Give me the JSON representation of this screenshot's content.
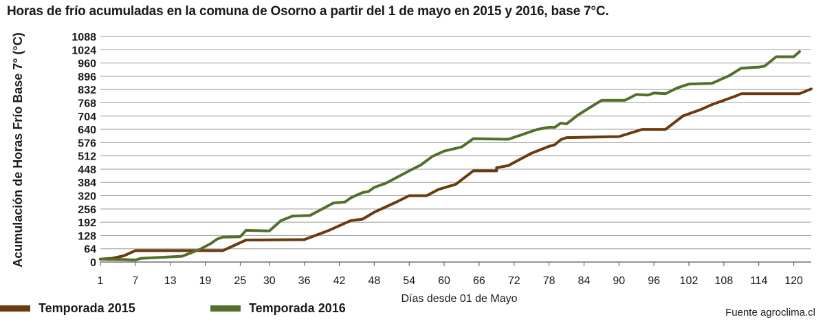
{
  "chart_data": {
    "type": "line",
    "title": "Horas de frío acumuladas en la comuna de Osorno a partir del 1 de mayo en 2015 y 2016, base 7°C.",
    "xlabel": "Días desde 01 de Mayo",
    "ylabel": "Acumulación de Horas Frío Base 7° (°C)",
    "xlim": [
      1,
      123
    ],
    "ylim": [
      0,
      1088
    ],
    "x_ticks": [
      1,
      7,
      13,
      19,
      25,
      30,
      36,
      42,
      48,
      54,
      60,
      66,
      72,
      78,
      84,
      90,
      96,
      102,
      108,
      114,
      120
    ],
    "y_ticks": [
      0,
      64,
      128,
      192,
      256,
      320,
      384,
      448,
      512,
      576,
      640,
      704,
      768,
      832,
      896,
      960,
      1024,
      1088
    ],
    "y_tick_labels": [
      "0",
      "64",
      "128",
      "192",
      "256",
      "320",
      "384",
      "448",
      "512",
      "576",
      "640",
      "704",
      "768",
      "832",
      "896",
      "960",
      "1024",
      "1088"
    ],
    "grid": "horizontal",
    "legend": "bottom-left",
    "source": "Fuente agroclima.cl",
    "series": [
      {
        "name": "Temporada 2015",
        "color": "#6b3a0e",
        "points": [
          [
            1,
            14
          ],
          [
            3,
            18
          ],
          [
            5,
            30
          ],
          [
            7,
            55
          ],
          [
            13,
            55
          ],
          [
            18,
            55
          ],
          [
            22,
            55
          ],
          [
            26,
            106
          ],
          [
            36,
            108
          ],
          [
            40,
            150
          ],
          [
            44,
            200
          ],
          [
            46,
            207
          ],
          [
            48,
            240
          ],
          [
            52,
            292
          ],
          [
            54,
            320
          ],
          [
            57,
            320
          ],
          [
            59,
            350
          ],
          [
            62,
            375
          ],
          [
            65,
            440
          ],
          [
            69,
            440
          ],
          [
            69,
            455
          ],
          [
            71,
            465
          ],
          [
            75,
            525
          ],
          [
            78,
            558
          ],
          [
            79,
            566
          ],
          [
            80,
            590
          ],
          [
            81,
            600
          ],
          [
            90,
            605
          ],
          [
            94,
            640
          ],
          [
            96,
            640
          ],
          [
            98,
            640
          ],
          [
            101,
            705
          ],
          [
            104,
            735
          ],
          [
            106,
            760
          ],
          [
            108,
            780
          ],
          [
            110,
            800
          ],
          [
            111,
            812
          ],
          [
            121,
            812
          ],
          [
            123,
            835
          ]
        ]
      },
      {
        "name": "Temporada 2016",
        "color": "#53702a",
        "points": [
          [
            1,
            14
          ],
          [
            5,
            12
          ],
          [
            7,
            10
          ],
          [
            8,
            18
          ],
          [
            15,
            28
          ],
          [
            18,
            60
          ],
          [
            20,
            90
          ],
          [
            21,
            110
          ],
          [
            22,
            120
          ],
          [
            25,
            122
          ],
          [
            26,
            153
          ],
          [
            30,
            150
          ],
          [
            32,
            200
          ],
          [
            34,
            222
          ],
          [
            37,
            225
          ],
          [
            41,
            285
          ],
          [
            43,
            290
          ],
          [
            44,
            310
          ],
          [
            46,
            335
          ],
          [
            47,
            340
          ],
          [
            48,
            360
          ],
          [
            50,
            380
          ],
          [
            54,
            440
          ],
          [
            56,
            468
          ],
          [
            58,
            510
          ],
          [
            60,
            535
          ],
          [
            63,
            555
          ],
          [
            65,
            595
          ],
          [
            71,
            592
          ],
          [
            76,
            640
          ],
          [
            78,
            650
          ],
          [
            79,
            650
          ],
          [
            80,
            670
          ],
          [
            81,
            666
          ],
          [
            83,
            710
          ],
          [
            85,
            745
          ],
          [
            87,
            780
          ],
          [
            91,
            780
          ],
          [
            93,
            808
          ],
          [
            95,
            805
          ],
          [
            96,
            815
          ],
          [
            98,
            812
          ],
          [
            100,
            840
          ],
          [
            102,
            858
          ],
          [
            106,
            862
          ],
          [
            109,
            900
          ],
          [
            111,
            935
          ],
          [
            114,
            940
          ],
          [
            115,
            945
          ],
          [
            117,
            990
          ],
          [
            120,
            990
          ],
          [
            121,
            1015
          ]
        ]
      }
    ]
  }
}
